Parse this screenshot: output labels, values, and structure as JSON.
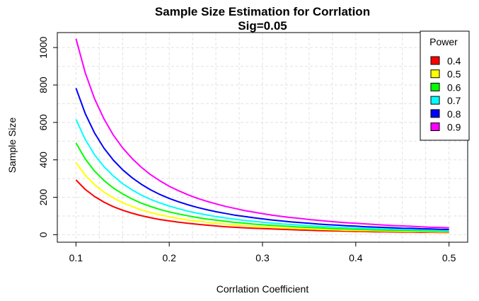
{
  "chart_data": {
    "type": "line",
    "title": "Sample Size Estimation for Corrlation",
    "subtitle": "Sig=0.05",
    "xlabel": "Corrlation Coefficient",
    "ylabel": "Sample Size",
    "xlim": [
      0.08,
      0.52
    ],
    "ylim": [
      -40,
      1080
    ],
    "x_ticks": [
      0.1,
      0.2,
      0.3,
      0.4,
      0.5
    ],
    "x_tick_labels": [
      "0.1",
      "0.2",
      "0.3",
      "0.4",
      "0.5"
    ],
    "y_ticks": [
      0,
      200,
      400,
      600,
      800,
      1000
    ],
    "y_tick_labels": [
      "0",
      "200",
      "400",
      "600",
      "800",
      "1000"
    ],
    "grid": true,
    "legend": {
      "title": "Power",
      "position": "top-right"
    },
    "x": [
      0.1,
      0.11,
      0.12,
      0.13,
      0.14,
      0.15,
      0.16,
      0.17,
      0.18,
      0.19,
      0.2,
      0.21,
      0.22,
      0.23,
      0.24,
      0.25,
      0.26,
      0.27,
      0.28,
      0.29,
      0.3,
      0.31,
      0.32,
      0.33,
      0.34,
      0.35,
      0.36,
      0.37,
      0.38,
      0.39,
      0.4,
      0.41,
      0.42,
      0.43,
      0.44,
      0.45,
      0.46,
      0.47,
      0.48,
      0.49,
      0.5
    ],
    "series": [
      {
        "name": "0.4",
        "color": "#ff0000",
        "values": [
          293,
          242,
          204,
          174,
          150,
          131,
          115,
          102,
          91,
          81,
          74,
          67,
          61,
          56,
          51,
          47,
          43,
          40,
          37,
          35,
          33,
          31,
          29,
          27,
          25,
          24,
          22,
          21,
          20,
          19,
          18,
          17,
          16,
          16,
          15,
          14,
          14,
          13,
          13,
          12,
          12
        ]
      },
      {
        "name": "0.5",
        "color": "#ffff00",
        "values": [
          385,
          318,
          267,
          228,
          197,
          171,
          151,
          133,
          119,
          107,
          96,
          87,
          79,
          73,
          67,
          61,
          57,
          52,
          49,
          45,
          42,
          40,
          37,
          35,
          33,
          31,
          29,
          27,
          26,
          24,
          23,
          22,
          21,
          20,
          19,
          18,
          17,
          17,
          16,
          15,
          15
        ]
      },
      {
        "name": "0.6",
        "color": "#00ff00",
        "values": [
          490,
          405,
          340,
          290,
          250,
          218,
          191,
          169,
          151,
          135,
          122,
          111,
          101,
          92,
          84,
          78,
          72,
          66,
          62,
          57,
          53,
          50,
          47,
          44,
          41,
          39,
          37,
          34,
          32,
          31,
          29,
          28,
          26,
          25,
          24,
          23,
          22,
          21,
          20,
          19,
          18
        ]
      },
      {
        "name": "0.7",
        "color": "#00ffff",
        "values": [
          616,
          509,
          427,
          364,
          314,
          273,
          240,
          212,
          189,
          170,
          153,
          139,
          126,
          115,
          106,
          97,
          90,
          83,
          77,
          72,
          67,
          62,
          58,
          55,
          51,
          48,
          45,
          43,
          40,
          38,
          36,
          34,
          33,
          31,
          30,
          28,
          27,
          26,
          25,
          23,
          22
        ]
      },
      {
        "name": "0.8",
        "color": "#0000ff",
        "values": [
          783,
          647,
          543,
          463,
          399,
          347,
          305,
          270,
          240,
          215,
          194,
          176,
          160,
          146,
          134,
          123,
          114,
          105,
          98,
          91,
          85,
          79,
          74,
          69,
          65,
          61,
          57,
          54,
          51,
          48,
          46,
          43,
          41,
          39,
          37,
          35,
          34,
          32,
          31,
          29,
          28
        ]
      },
      {
        "name": "0.9",
        "color": "#ff00ff",
        "values": [
          1047,
          865,
          726,
          619,
          533,
          464,
          408,
          361,
          321,
          288,
          259,
          235,
          214,
          195,
          179,
          165,
          152,
          141,
          130,
          121,
          113,
          105,
          98,
          92,
          87,
          81,
          77,
          72,
          68,
          64,
          61,
          58,
          55,
          52,
          49,
          47,
          45,
          42,
          40,
          39,
          37
        ]
      }
    ]
  }
}
